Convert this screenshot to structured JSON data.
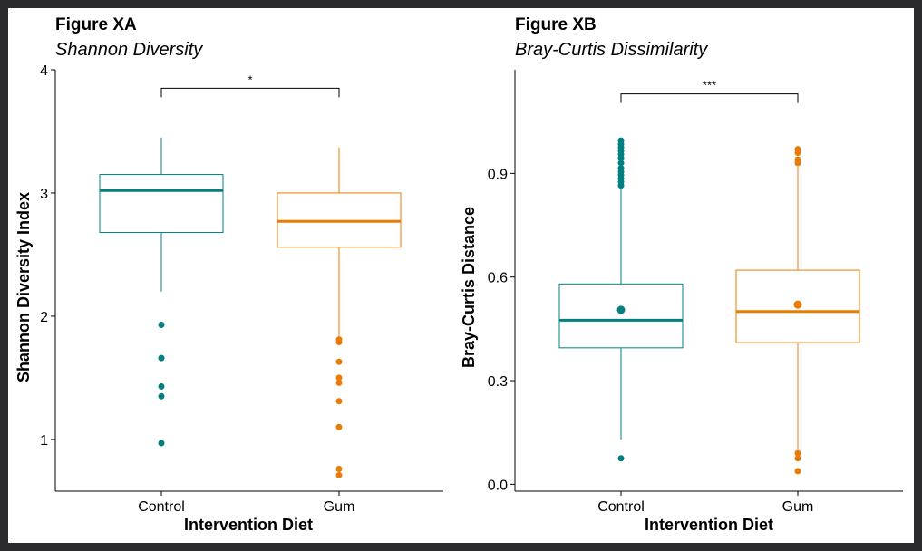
{
  "chart_data": [
    {
      "type": "box",
      "title": "Figure XA",
      "subtitle": "Shannon Diversity",
      "xlabel": "Intervention Diet",
      "ylabel": "Shannon Diversity Index",
      "ylim": [
        0.58,
        4.0
      ],
      "yticks": [
        1,
        2,
        3,
        4
      ],
      "yticklabels": [
        "1",
        "2",
        "3",
        "4"
      ],
      "categories": [
        "Control",
        "Gum"
      ],
      "colors": [
        "#008080",
        "#e87c07"
      ],
      "boxes": [
        {
          "q1": 2.68,
          "median": 3.02,
          "q3": 3.15,
          "whisker_low": 2.2,
          "whisker_high": 3.45,
          "outliers": [
            1.93,
            1.66,
            1.43,
            1.35,
            0.97
          ]
        },
        {
          "q1": 2.56,
          "median": 2.77,
          "q3": 3.0,
          "whisker_low": 1.8,
          "whisker_high": 3.37,
          "outliers": [
            1.81,
            1.79,
            1.63,
            1.5,
            1.46,
            1.31,
            1.1,
            0.76,
            0.71
          ]
        }
      ],
      "significance": {
        "label": "*",
        "y": 3.85
      },
      "grid": false
    },
    {
      "type": "box",
      "title": "Figure XB",
      "subtitle": "Bray-Curtis Dissimilarity",
      "xlabel": "Intervention Diet",
      "ylabel": "Bray-Curtis Distance",
      "ylim": [
        -0.02,
        1.2
      ],
      "yticks": [
        0.0,
        0.3,
        0.6,
        0.9
      ],
      "yticklabels": [
        "0.0",
        "0.3",
        "0.6",
        "0.9"
      ],
      "categories": [
        "Control",
        "Gum"
      ],
      "colors": [
        "#008080",
        "#e87c07"
      ],
      "boxes": [
        {
          "q1": 0.395,
          "median": 0.475,
          "q3": 0.58,
          "mean": 0.505,
          "whisker_low": 0.13,
          "whisker_high": 0.86,
          "outliers": [
            0.995,
            0.985,
            0.975,
            0.965,
            0.955,
            0.945,
            0.93,
            0.915,
            0.905,
            0.895,
            0.885,
            0.875,
            0.865,
            0.075
          ]
        },
        {
          "q1": 0.41,
          "median": 0.5,
          "q3": 0.62,
          "mean": 0.52,
          "whisker_low": 0.1,
          "whisker_high": 0.92,
          "outliers": [
            0.97,
            0.96,
            0.94,
            0.93,
            0.09,
            0.075,
            0.038
          ]
        }
      ],
      "significance": {
        "label": "***",
        "y": 1.13
      },
      "grid": false
    }
  ]
}
